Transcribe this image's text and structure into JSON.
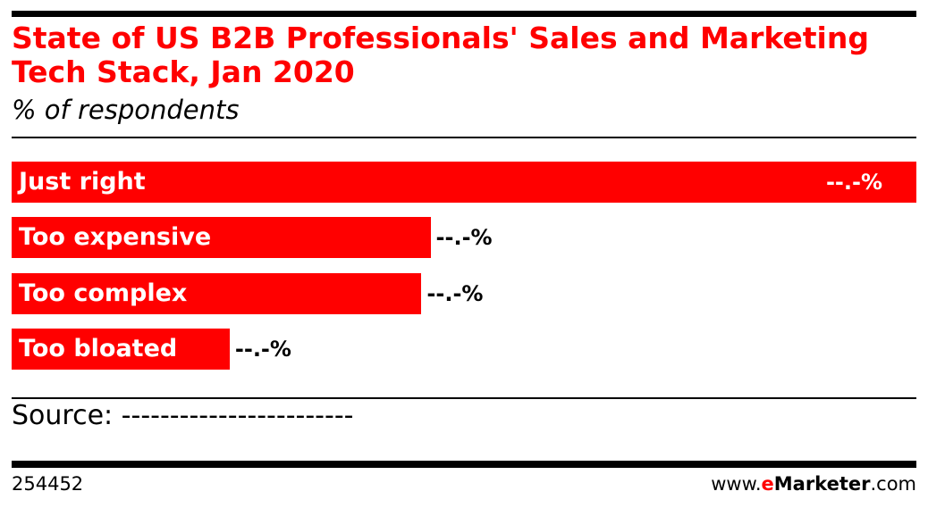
{
  "chart_data": {
    "type": "bar",
    "orientation": "horizontal",
    "title": "State of US B2B Professionals' Sales and Marketing Tech Stack, Jan 2020",
    "subtitle": "% of respondents",
    "categories": [
      "Just right",
      "Too expensive",
      "Too complex",
      "Too bloated"
    ],
    "values": [
      100,
      46.3,
      45.3,
      24.1
    ],
    "value_note": "relative bar lengths; printed values are masked",
    "data_labels": [
      "--.-%",
      "--.-%",
      "--.-%",
      "--.-%"
    ],
    "grid": false,
    "bar_color": "#ff0000"
  },
  "source": "Source: ------------------------",
  "footer": {
    "chart_id": "254452",
    "site_prefix": "www.",
    "site_brand_e": "e",
    "site_brand_rest": "Marketer",
    "site_suffix": ".com"
  },
  "colors": {
    "accent": "#ff0000",
    "text": "#000000"
  }
}
